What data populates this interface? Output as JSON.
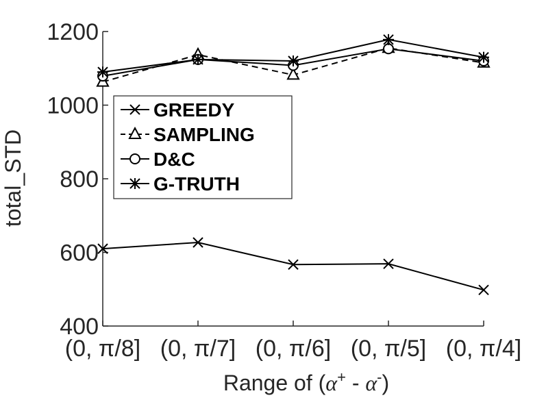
{
  "chart_data": {
    "type": "line",
    "categories": [
      "(0, π/8]",
      "(0, π/7]",
      "(0, π/6]",
      "(0, π/5]",
      "(0, π/4]"
    ],
    "xlabel_prefix": "Range of (",
    "xlabel_alpha": "α",
    "xlabel_sup_plus": "+",
    "xlabel_minus": " - ",
    "xlabel_sup_minus": "-",
    "xlabel_suffix": ")",
    "ylabel": "total_STD",
    "ylim": [
      400,
      1200
    ],
    "yticks": [
      400,
      600,
      800,
      1000,
      1200
    ],
    "grid": false,
    "legend_position": "upper-left",
    "series": [
      {
        "name": "GREEDY",
        "marker": "x",
        "dash": "solid",
        "values": [
          610,
          627,
          567,
          569,
          498
        ]
      },
      {
        "name": "SAMPLING",
        "marker": "triangle",
        "dash": "dashed",
        "values": [
          1063,
          1137,
          1082,
          1155,
          1115
        ]
      },
      {
        "name": "D&C",
        "marker": "circle",
        "dash": "solid",
        "values": [
          1079,
          1124,
          1108,
          1153,
          1120
        ]
      },
      {
        "name": "G-TRUTH",
        "marker": "star",
        "dash": "solid",
        "values": [
          1090,
          1124,
          1120,
          1178,
          1130
        ]
      }
    ],
    "line_color": "#000000"
  }
}
